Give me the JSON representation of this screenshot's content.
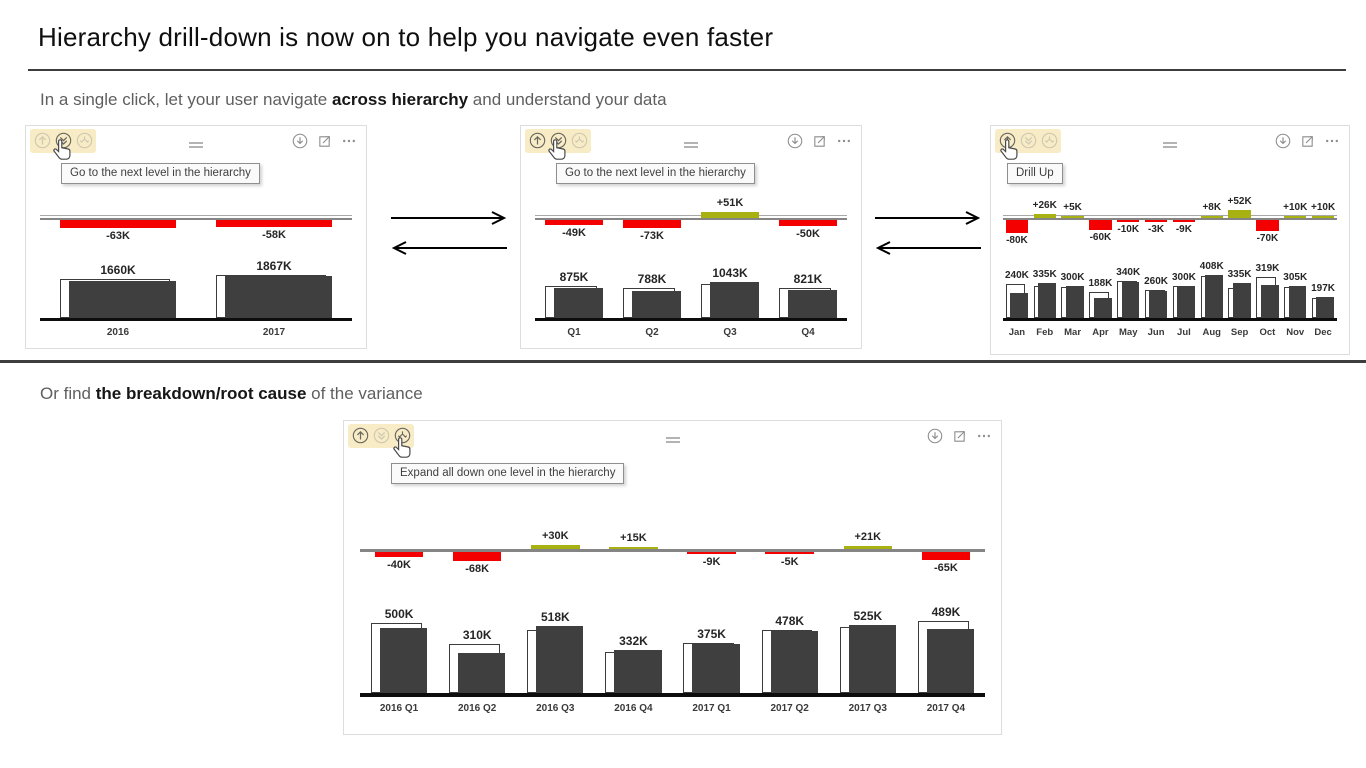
{
  "page": {
    "title": "Hierarchy drill-down is now on to help you navigate even faster",
    "section1": {
      "prefix": "In a single click, let your user navigate ",
      "bold": "across hierarchy",
      "suffix": " and understand your data"
    },
    "section2": {
      "prefix": "Or find ",
      "bold": "the breakdown/root cause",
      "suffix": " of the variance"
    }
  },
  "colors": {
    "variance_negative": "#f40000",
    "variance_positive": "#a7b112",
    "bar_fill": "#3f3f3f",
    "axis_gray": "#858585",
    "axis_gray_light": "#a8a8a8",
    "baseline_black": "#0d0d0d",
    "highlight_yellow": "#f8ecc6"
  },
  "panels": [
    {
      "name": "year-level-panel",
      "tooltip": "Go to the next level in the hierarchy",
      "left_icons": [
        {
          "icon": "drill-up-icon",
          "enabled": false,
          "cursor": false
        },
        {
          "icon": "drill-down-icon",
          "enabled": true,
          "cursor": true
        },
        {
          "icon": "expand-all-icon",
          "enabled": false,
          "cursor": false
        }
      ],
      "right_icons": [
        "circled-down-arrow-icon",
        "focus-mode-icon",
        "more-options-icon"
      ]
    },
    {
      "name": "quarter-level-panel",
      "tooltip": "Go to the next level in the hierarchy",
      "left_icons": [
        {
          "icon": "drill-up-icon",
          "enabled": true,
          "cursor": false
        },
        {
          "icon": "drill-down-icon",
          "enabled": true,
          "cursor": true
        },
        {
          "icon": "expand-all-icon",
          "enabled": false,
          "cursor": false
        }
      ],
      "right_icons": [
        "circled-down-arrow-icon",
        "focus-mode-icon",
        "more-options-icon"
      ]
    },
    {
      "name": "month-level-panel",
      "tooltip": "Drill Up",
      "left_icons": [
        {
          "icon": "drill-up-icon",
          "enabled": true,
          "cursor": true
        },
        {
          "icon": "drill-down-icon",
          "enabled": false,
          "cursor": false
        },
        {
          "icon": "expand-all-icon",
          "enabled": false,
          "cursor": false
        }
      ],
      "right_icons": [
        "circled-down-arrow-icon",
        "focus-mode-icon",
        "more-options-icon"
      ]
    },
    {
      "name": "quarter-expanded-panel",
      "tooltip": "Expand all down one level in the hierarchy",
      "left_icons": [
        {
          "icon": "drill-up-icon",
          "enabled": true,
          "cursor": false
        },
        {
          "icon": "drill-down-icon",
          "enabled": false,
          "cursor": false
        },
        {
          "icon": "expand-all-icon",
          "enabled": true,
          "cursor": true
        }
      ],
      "right_icons": [
        "circled-down-arrow-icon",
        "focus-mode-icon",
        "more-options-icon"
      ]
    }
  ],
  "chart_data": [
    {
      "type": "bar",
      "level": "year",
      "unit": "K",
      "categories": [
        "2016",
        "2017"
      ],
      "actual": [
        1660,
        1867
      ],
      "variance": [
        -63,
        -58
      ],
      "actual_labels": [
        "1660K",
        "1867K"
      ],
      "variance_labels": [
        "-63K",
        "-58K"
      ]
    },
    {
      "type": "bar",
      "level": "quarter",
      "unit": "K",
      "categories": [
        "Q1",
        "Q2",
        "Q3",
        "Q4"
      ],
      "actual": [
        875,
        788,
        1043,
        821
      ],
      "variance": [
        -49,
        -73,
        51,
        -50
      ],
      "actual_labels": [
        "875K",
        "788K",
        "1043K",
        "821K"
      ],
      "variance_labels": [
        "-49K",
        "-73K",
        "+51K",
        "-50K"
      ]
    },
    {
      "type": "bar",
      "level": "month",
      "unit": "K",
      "categories": [
        "Jan",
        "Feb",
        "Mar",
        "Apr",
        "May",
        "Jun",
        "Jul",
        "Aug",
        "Sep",
        "Oct",
        "Nov",
        "Dec"
      ],
      "actual": [
        240,
        335,
        300,
        188,
        340,
        260,
        300,
        408,
        335,
        319,
        305,
        197
      ],
      "variance": [
        -80,
        26,
        5,
        -60,
        -10,
        -3,
        -9,
        8,
        52,
        -70,
        10,
        10
      ],
      "actual_labels": [
        "240K",
        "335K",
        "300K",
        "188K",
        "340K",
        "260K",
        "300K",
        "408K",
        "335K",
        "319K",
        "305K",
        "197K"
      ],
      "variance_labels": [
        "-80K",
        "+26K",
        "+5K",
        "-60K",
        "-10K",
        "-3K",
        "-9K",
        "+8K",
        "+52K",
        "-70K",
        "+10K",
        "+10K"
      ]
    },
    {
      "type": "bar",
      "level": "year-quarter",
      "unit": "K",
      "categories": [
        "2016 Q1",
        "2016 Q2",
        "2016 Q3",
        "2016 Q4",
        "2017 Q1",
        "2017 Q2",
        "2017 Q3",
        "2017 Q4"
      ],
      "actual": [
        500,
        310,
        518,
        332,
        375,
        478,
        525,
        489
      ],
      "variance": [
        -40,
        -68,
        30,
        15,
        -9,
        -5,
        21,
        -65
      ],
      "actual_labels": [
        "500K",
        "310K",
        "518K",
        "332K",
        "375K",
        "478K",
        "525K",
        "489K"
      ],
      "variance_labels": [
        "-40K",
        "-68K",
        "+30K",
        "+15K",
        "-9K",
        "-5K",
        "+21K",
        "-65K"
      ]
    }
  ]
}
